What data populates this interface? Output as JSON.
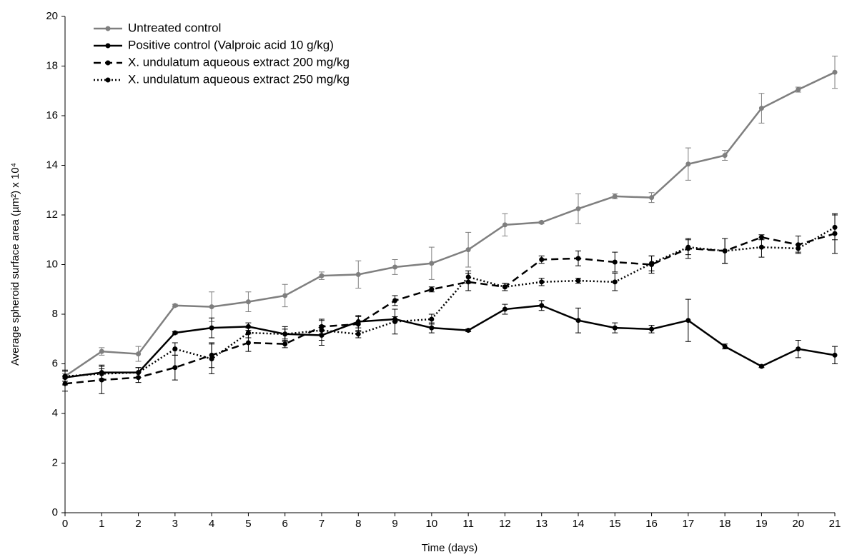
{
  "chart_data": {
    "type": "line",
    "xlabel": "Time (days)",
    "ylabel": "Average spheroid surface area (µm²) x 10⁴",
    "x": [
      0,
      1,
      2,
      3,
      4,
      5,
      6,
      7,
      8,
      9,
      10,
      11,
      12,
      13,
      14,
      15,
      16,
      17,
      18,
      19,
      20,
      21
    ],
    "xlim": [
      0,
      21
    ],
    "xticks": [
      0,
      1,
      2,
      3,
      4,
      5,
      6,
      7,
      8,
      9,
      10,
      11,
      12,
      13,
      14,
      15,
      16,
      17,
      18,
      19,
      20,
      21
    ],
    "ylim": [
      0,
      20
    ],
    "yticks": [
      0,
      2,
      4,
      6,
      8,
      10,
      12,
      14,
      16,
      18,
      20
    ],
    "grid": false,
    "legend": "top-left",
    "series": [
      {
        "name": "Untreated control",
        "color": "#7f7f7f",
        "dash": "solid",
        "values": [
          5.5,
          6.5,
          6.4,
          8.35,
          8.3,
          8.5,
          8.75,
          9.55,
          9.6,
          9.9,
          10.05,
          10.6,
          11.6,
          11.7,
          12.25,
          12.75,
          12.7,
          14.05,
          14.4,
          16.3,
          17.05,
          17.75
        ],
        "errors": [
          0.1,
          0.15,
          0.3,
          0.05,
          0.6,
          0.4,
          0.45,
          0.15,
          0.55,
          0.3,
          0.65,
          0.7,
          0.45,
          0.05,
          0.6,
          0.1,
          0.2,
          0.65,
          0.2,
          0.6,
          0.1,
          0.65
        ]
      },
      {
        "name": "Positive control (Valproic acid 10 g/kg)",
        "color": "#000000",
        "dash": "solid",
        "values": [
          5.45,
          5.65,
          5.65,
          7.25,
          7.45,
          7.5,
          7.2,
          7.15,
          7.7,
          7.8,
          7.45,
          7.35,
          8.2,
          8.35,
          7.75,
          7.45,
          7.4,
          7.75,
          6.7,
          5.9,
          6.6,
          6.35
        ],
        "errors": [
          0.3,
          0.3,
          0.2,
          0.05,
          0.4,
          0.15,
          0.2,
          0.4,
          0.25,
          0.1,
          0.2,
          0.05,
          0.2,
          0.2,
          0.5,
          0.2,
          0.15,
          0.85,
          0.1,
          0.05,
          0.35,
          0.35
        ]
      },
      {
        "name": "X. undulatum aqueous extract 200 mg/kg",
        "color": "#000000",
        "dash": "dashed",
        "values": [
          5.2,
          5.35,
          5.45,
          5.85,
          6.35,
          6.85,
          6.8,
          7.5,
          7.6,
          8.55,
          9.0,
          9.3,
          9.1,
          10.2,
          10.25,
          10.1,
          10.0,
          10.65,
          10.55,
          11.1,
          10.8,
          11.25
        ],
        "errors": [
          0.3,
          0.55,
          0.2,
          0.5,
          0.5,
          0.35,
          0.15,
          0.3,
          0.3,
          0.2,
          0.1,
          0.35,
          0.15,
          0.15,
          0.3,
          0.4,
          0.35,
          0.4,
          0.5,
          0.1,
          0.35,
          0.8
        ]
      },
      {
        "name": "X. undulatum aqueous extract 250 mg/kg",
        "color": "#000000",
        "dash": "dotted",
        "values": [
          5.5,
          5.6,
          5.65,
          6.6,
          6.2,
          7.25,
          7.2,
          7.35,
          7.2,
          7.7,
          7.8,
          9.5,
          9.1,
          9.3,
          9.35,
          9.3,
          10.05,
          10.7,
          10.55,
          10.7,
          10.65,
          11.5
        ],
        "errors": [
          0.2,
          0.2,
          0.2,
          0.25,
          0.6,
          0.2,
          0.3,
          0.4,
          0.15,
          0.5,
          0.2,
          0.25,
          0.15,
          0.15,
          0.1,
          0.35,
          0.3,
          0.3,
          0.5,
          0.4,
          0.15,
          0.5
        ]
      }
    ]
  }
}
